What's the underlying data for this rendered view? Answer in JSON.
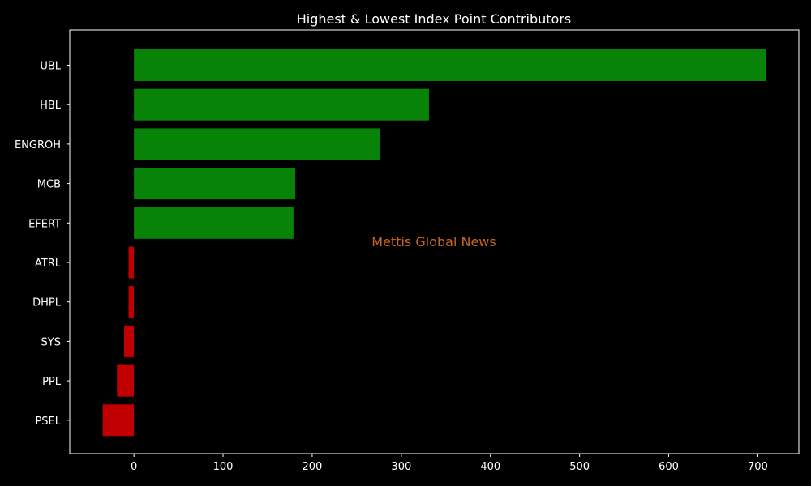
{
  "chart_data": {
    "type": "bar",
    "orientation": "horizontal",
    "title": "Highest & Lowest Index Point Contributors",
    "xlabel": "",
    "ylabel": "",
    "categories": [
      "UBL",
      "HBL",
      "ENGROH",
      "MCB",
      "EFERT",
      "ATRL",
      "DHPL",
      "SYS",
      "PPL",
      "PSEL"
    ],
    "values": [
      709,
      331,
      276,
      181,
      179,
      -6,
      -6,
      -11,
      -19,
      -35
    ],
    "xlim": [
      -72,
      746
    ],
    "xticks": [
      0,
      100,
      200,
      300,
      400,
      500,
      600,
      700
    ],
    "grid": false,
    "legend": "none",
    "positive_color": "#078407",
    "negative_color": "#c00000",
    "background_color": "#000000",
    "text_color": "#ffffff"
  },
  "watermark": {
    "text": "Mettis Global News",
    "color": "#c8661c"
  }
}
